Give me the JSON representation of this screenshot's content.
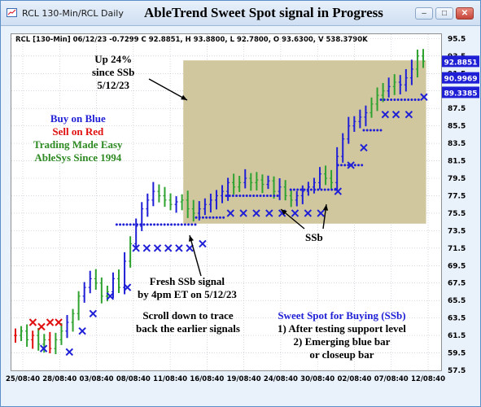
{
  "window": {
    "title": "RCL 130-Min/RCL Daily",
    "chart_title": "AbleTrend Sweet Spot signal in Progress"
  },
  "info_line": "RCL [130-Min] 06/12/23   -0.7299 C 92.8851, H 93.8800, L 92.7800, O 93.6300, V 538.3790K",
  "annotations": {
    "up_gain": [
      "Up 24%",
      "since SSb",
      "5/12/23"
    ],
    "legend": {
      "buy": "Buy on Blue",
      "sell": "Sell on Red",
      "easy": "Trading Made Easy",
      "since": "AbleSys Since 1994"
    },
    "fresh_signal": [
      "Fresh SSb signal",
      "by 4pm ET on 5/12/23"
    ],
    "scroll": [
      "Scroll down to trace",
      "back the earlier signals"
    ],
    "ssb_label": "SSb",
    "sweet_spot": {
      "title": "Sweet Spot for Buying (SSb)",
      "line1": "1) After testing support level",
      "line2": "2) Emerging blue bar",
      "line3": "or closeup bar"
    }
  },
  "colors": {
    "blue": "#1f1fd6",
    "red": "#e01010",
    "green": "#2ea22e",
    "highlight": "#cfc49a"
  },
  "chart_data": {
    "type": "bar",
    "title": "AbleTrend Sweet Spot signal in Progress",
    "xlabel": "",
    "ylabel": "",
    "ylim": [
      57.5,
      96.0
    ],
    "y_ticks": [
      "95.5",
      "93.5",
      "91.5",
      "89.5",
      "87.5",
      "85.5",
      "83.5",
      "81.5",
      "79.5",
      "77.5",
      "75.5",
      "73.5",
      "71.5",
      "69.5",
      "67.5",
      "65.5",
      "63.5",
      "61.5",
      "59.5",
      "57.5"
    ],
    "x_ticks": [
      "25/08:40",
      "28/08:40",
      "03/08:40",
      "08/08:40",
      "11/08:40",
      "16/08:40",
      "19/08:40",
      "24/08:40",
      "30/08:40",
      "02/08:40",
      "07/08:40",
      "12/08:40"
    ],
    "price_labels": [
      {
        "value": "92.8851",
        "level": 92.89,
        "color": "#1f1fd6"
      },
      {
        "value": "90.9969",
        "level": 91.0,
        "color": "#1f1fd6"
      },
      {
        "value": "89.3385",
        "level": 89.34,
        "color": "#1f1fd6"
      }
    ],
    "price_path": [
      61.5,
      62,
      61,
      61.5,
      60.5,
      61,
      60,
      61,
      62,
      63,
      64,
      66,
      67,
      68,
      67.5,
      66,
      66.5,
      68,
      67,
      70,
      72,
      74,
      76,
      77,
      78,
      77.5,
      77,
      76.5,
      76.8,
      77,
      76,
      75.5,
      76,
      76.5,
      77,
      77.5,
      78,
      79,
      78.5,
      79,
      79.5,
      79,
      79.3,
      78.8,
      79.2,
      78,
      78.5,
      77.5,
      77,
      77.5,
      78,
      78.5,
      79,
      80,
      79.5,
      79,
      82,
      84,
      85.5,
      86,
      86.5,
      87,
      88,
      89,
      89.5,
      90,
      90.5,
      90.2,
      91,
      92,
      93.5,
      92.9
    ],
    "highlight": {
      "x_from": 0.4,
      "x_to": 0.965,
      "y_from": 74.3,
      "y_to": 93.0
    },
    "support_dots": [
      {
        "x1": 0.245,
        "x2": 0.43,
        "y": 74.2
      },
      {
        "x1": 0.43,
        "x2": 0.5,
        "y": 75.0
      },
      {
        "x1": 0.5,
        "x2": 0.62,
        "y": 77.5
      },
      {
        "x1": 0.65,
        "x2": 0.76,
        "y": 78.2
      },
      {
        "x1": 0.76,
        "x2": 0.82,
        "y": 81.0
      },
      {
        "x1": 0.82,
        "x2": 0.86,
        "y": 85.0
      },
      {
        "x1": 0.86,
        "x2": 0.95,
        "y": 88.5
      }
    ],
    "buy_x_markers": [
      {
        "x": 0.075,
        "y": 60.0
      },
      {
        "x": 0.135,
        "y": 59.6
      },
      {
        "x": 0.165,
        "y": 62.0
      },
      {
        "x": 0.19,
        "y": 64.0
      },
      {
        "x": 0.23,
        "y": 66.0
      },
      {
        "x": 0.27,
        "y": 67.0
      },
      {
        "x": 0.29,
        "y": 71.5
      },
      {
        "x": 0.315,
        "y": 71.5
      },
      {
        "x": 0.34,
        "y": 71.5
      },
      {
        "x": 0.365,
        "y": 71.5
      },
      {
        "x": 0.39,
        "y": 71.5
      },
      {
        "x": 0.415,
        "y": 71.5
      },
      {
        "x": 0.445,
        "y": 72.0
      },
      {
        "x": 0.51,
        "y": 75.5
      },
      {
        "x": 0.54,
        "y": 75.5
      },
      {
        "x": 0.57,
        "y": 75.5
      },
      {
        "x": 0.6,
        "y": 75.5
      },
      {
        "x": 0.63,
        "y": 75.5
      },
      {
        "x": 0.66,
        "y": 75.5
      },
      {
        "x": 0.69,
        "y": 75.5
      },
      {
        "x": 0.72,
        "y": 75.5
      },
      {
        "x": 0.76,
        "y": 78.0
      },
      {
        "x": 0.79,
        "y": 81.0
      },
      {
        "x": 0.82,
        "y": 83.0
      },
      {
        "x": 0.87,
        "y": 86.8
      },
      {
        "x": 0.895,
        "y": 86.8
      },
      {
        "x": 0.925,
        "y": 86.8
      },
      {
        "x": 0.96,
        "y": 88.8
      }
    ],
    "sell_x_markers": [
      {
        "x": 0.05,
        "y": 63.0
      },
      {
        "x": 0.07,
        "y": 62.5
      },
      {
        "x": 0.09,
        "y": 63.0
      },
      {
        "x": 0.11,
        "y": 63.0
      }
    ]
  }
}
